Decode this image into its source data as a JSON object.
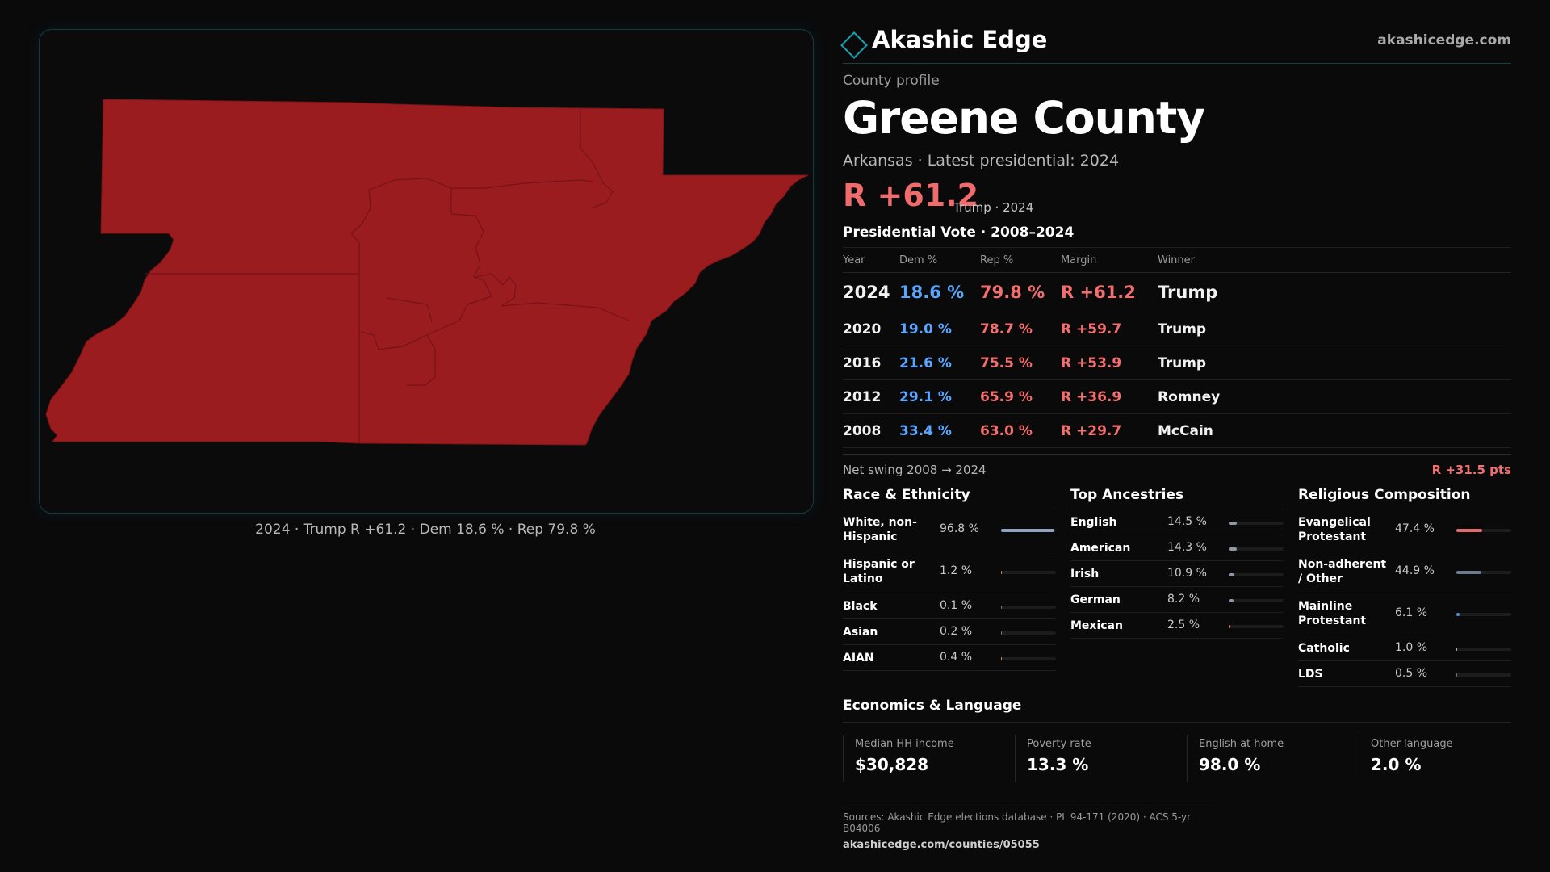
{
  "map": {
    "caption": "2024 · Trump R +61.2 · Dem 18.6 % · Rep 79.8 %",
    "fill_color": "#9b1c1f",
    "border_color": "#153a44"
  },
  "brand": {
    "name": "Akashic Edge",
    "url": "akashicedge.com",
    "icon": "diamond-logo-icon"
  },
  "profile": {
    "eyebrow": "County profile",
    "title": "Greene County",
    "subtitle": "Arkansas · Latest presidential: 2024",
    "headline_margin": "R +61.2",
    "headline_note": "Trump · 2024"
  },
  "vote": {
    "section_title": "Presidential Vote · 2008–2024",
    "headers": [
      "Year",
      "Dem %",
      "Rep %",
      "Margin",
      "Winner"
    ],
    "rows": [
      {
        "year": "2024",
        "dem": "18.6 %",
        "rep": "79.8 %",
        "margin": "R +61.2",
        "winner": "Trump"
      },
      {
        "year": "2020",
        "dem": "19.0 %",
        "rep": "78.7 %",
        "margin": "R +59.7",
        "winner": "Trump"
      },
      {
        "year": "2016",
        "dem": "21.6 %",
        "rep": "75.5 %",
        "margin": "R +53.9",
        "winner": "Trump"
      },
      {
        "year": "2012",
        "dem": "29.1 %",
        "rep": "65.9 %",
        "margin": "R +36.9",
        "winner": "Romney"
      },
      {
        "year": "2008",
        "dem": "33.4 %",
        "rep": "63.0 %",
        "margin": "R +29.7",
        "winner": "McCain"
      }
    ],
    "swing_label": "Net swing 2008 → 2024",
    "swing_value": "R +31.5 pts"
  },
  "race": {
    "title": "Race & Ethnicity",
    "items": [
      {
        "label": "White, non-Hispanic",
        "pct": "96.8 %",
        "value": 96.8,
        "color": "#8fa3c0"
      },
      {
        "label": "Hispanic or Latino",
        "pct": "1.2 %",
        "value": 1.2,
        "color": "#d88a3a"
      },
      {
        "label": "Black",
        "pct": "0.1 %",
        "value": 0.1,
        "color": "#777777"
      },
      {
        "label": "Asian",
        "pct": "0.2 %",
        "value": 0.2,
        "color": "#777777"
      },
      {
        "label": "AIAN",
        "pct": "0.4 %",
        "value": 0.4,
        "color": "#d88a3a"
      }
    ]
  },
  "ancestry": {
    "title": "Top Ancestries",
    "items": [
      {
        "label": "English",
        "pct": "14.5 %",
        "value": 14.5,
        "color": "#8f97a6"
      },
      {
        "label": "American",
        "pct": "14.3 %",
        "value": 14.3,
        "color": "#8f97a6"
      },
      {
        "label": "Irish",
        "pct": "10.9 %",
        "value": 10.9,
        "color": "#8f97a6"
      },
      {
        "label": "German",
        "pct": "8.2 %",
        "value": 8.2,
        "color": "#8f97a6"
      },
      {
        "label": "Mexican",
        "pct": "2.5 %",
        "value": 2.5,
        "color": "#d88a3a"
      }
    ]
  },
  "religion": {
    "title": "Religious Composition",
    "items": [
      {
        "label": "Evangelical Protestant",
        "pct": "47.4 %",
        "value": 47.4,
        "color": "#e06a6a"
      },
      {
        "label": "Non-adherent / Other",
        "pct": "44.9 %",
        "value": 44.9,
        "color": "#6f7a8e"
      },
      {
        "label": "Mainline Protestant",
        "pct": "6.1 %",
        "value": 6.1,
        "color": "#4f8fe0"
      },
      {
        "label": "Catholic",
        "pct": "1.0 %",
        "value": 1.0,
        "color": "#c8b24a"
      },
      {
        "label": "LDS",
        "pct": "0.5 %",
        "value": 0.5,
        "color": "#777777"
      }
    ]
  },
  "econ": {
    "title": "Economics & Language",
    "cells": [
      {
        "label": "Median HH income",
        "value": "$30,828"
      },
      {
        "label": "Poverty rate",
        "value": "13.3 %"
      },
      {
        "label": "English at home",
        "value": "98.0 %"
      },
      {
        "label": "Other language",
        "value": "2.0 %"
      }
    ]
  },
  "sources": {
    "text": "Sources: Akashic Edge elections database · PL 94-171 (2020) · ACS 5-yr B04006",
    "url": "akashicedge.com/counties/05055"
  }
}
